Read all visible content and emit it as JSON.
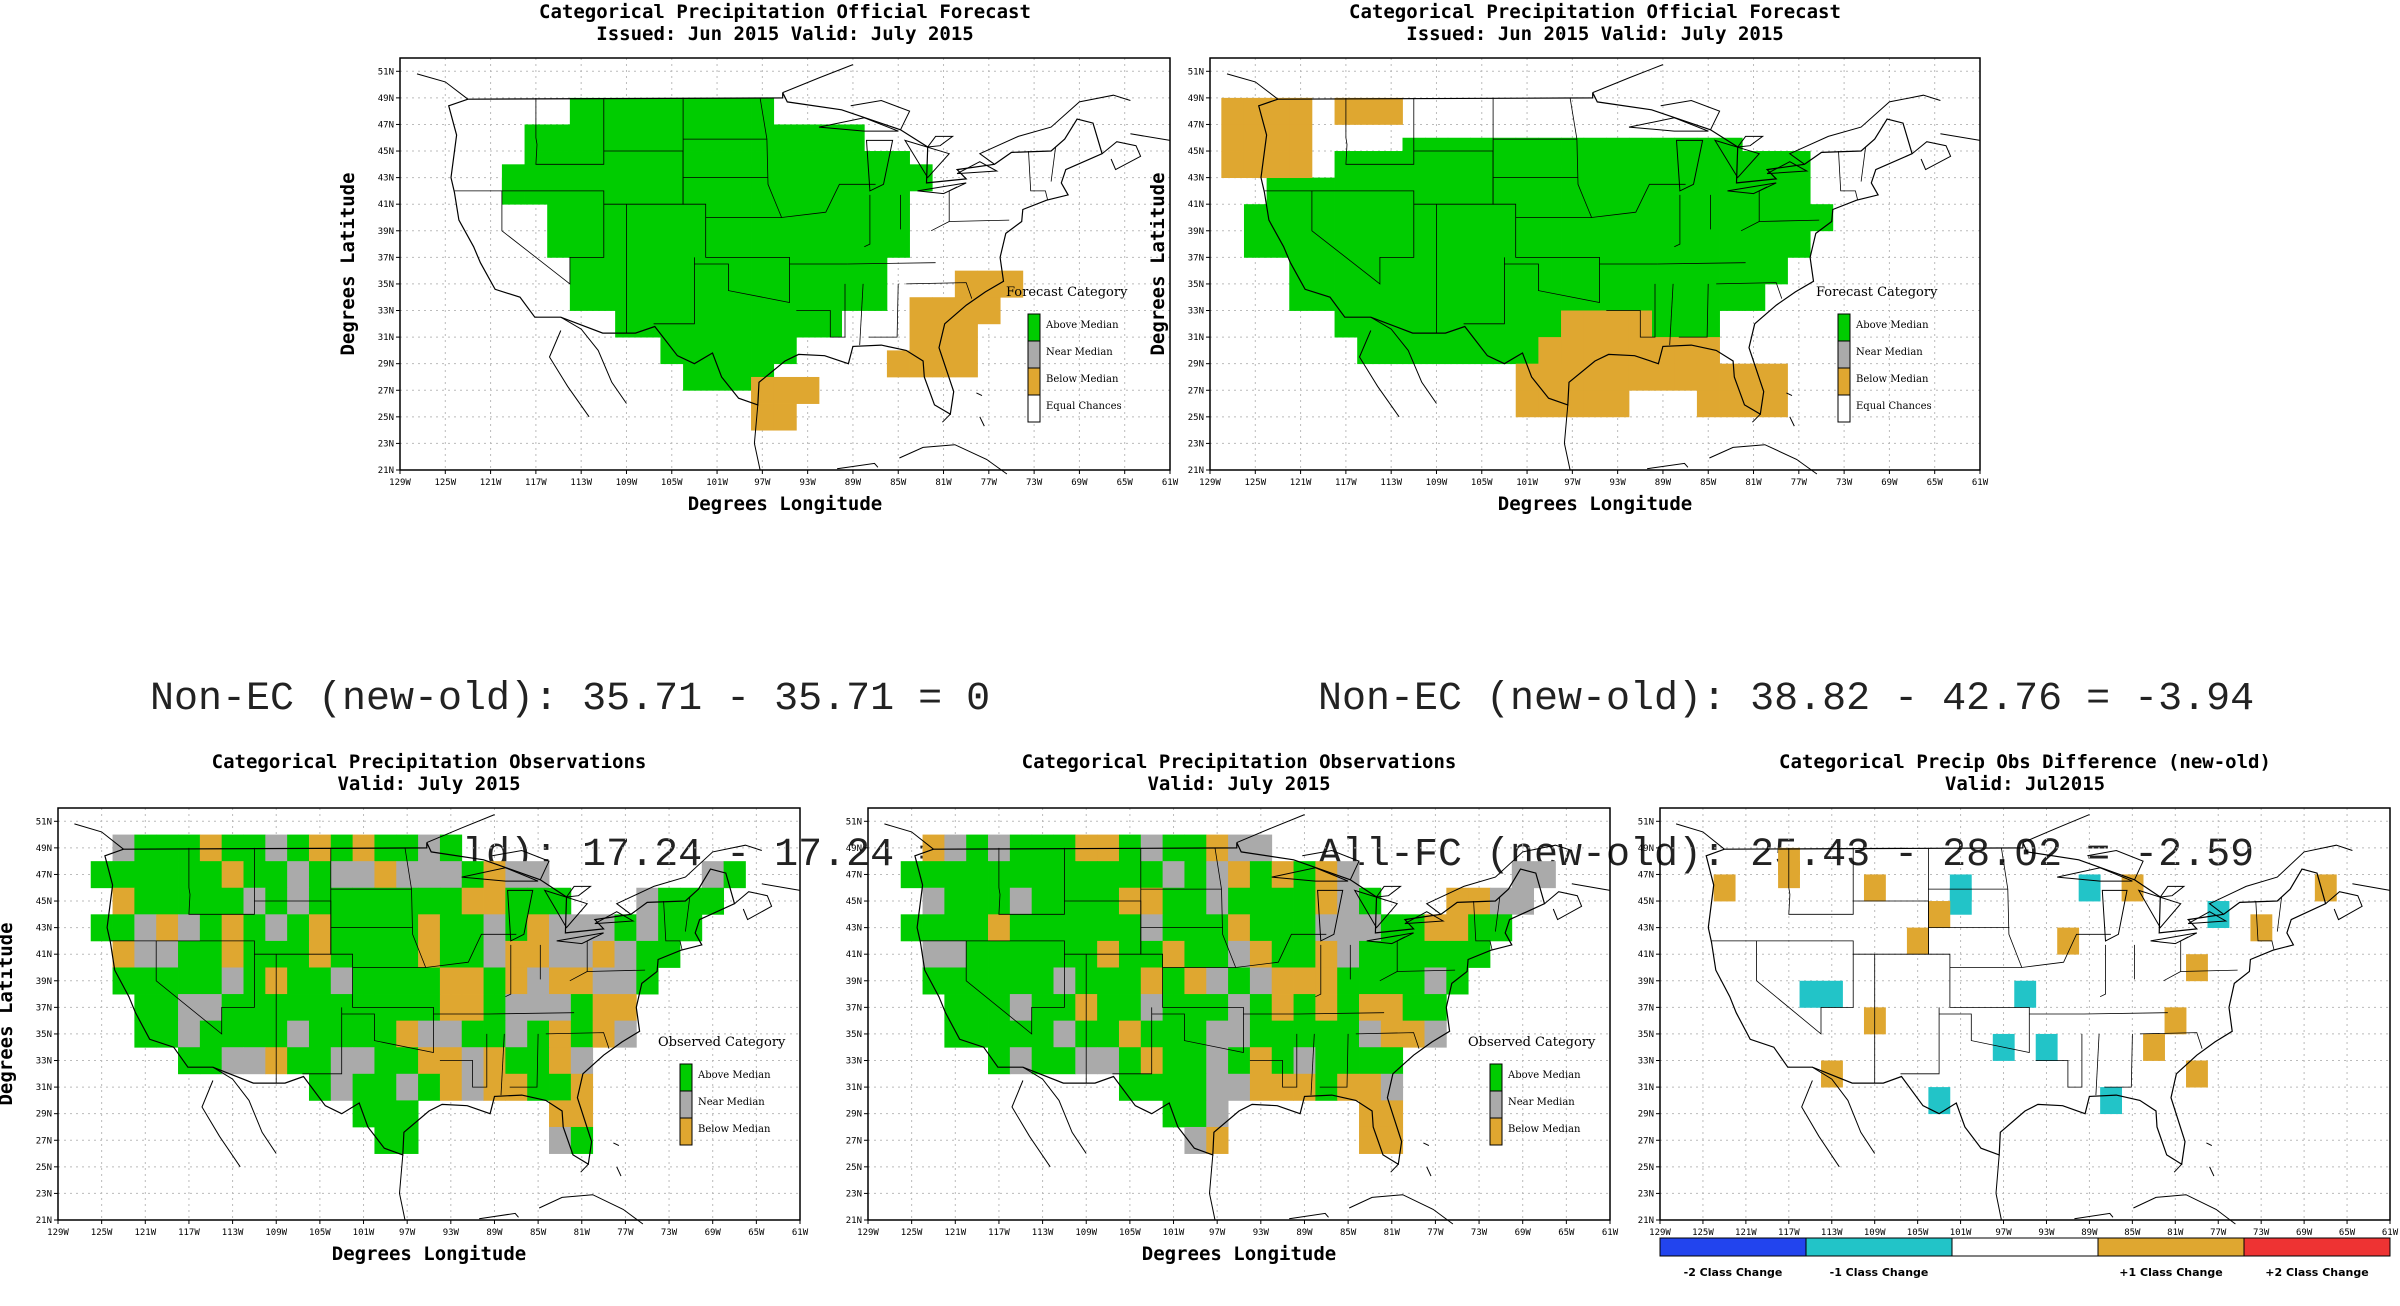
{
  "colors": {
    "above": "#00cc00",
    "near": "#aaaaaa",
    "below": "#dfa730",
    "equal": "#ffffff",
    "minus2": "#2244ee",
    "minus1": "#22c4c8",
    "plus1": "#dfa730",
    "plus2": "#ee3333",
    "zero": "#ffffff"
  },
  "axes": {
    "lat_ticks": [
      "51N",
      "49N",
      "47N",
      "45N",
      "43N",
      "41N",
      "39N",
      "37N",
      "35N",
      "33N",
      "31N",
      "29N",
      "27N",
      "25N",
      "23N",
      "21N"
    ],
    "lon_ticks": [
      "129W",
      "125W",
      "121W",
      "117W",
      "113W",
      "109W",
      "105W",
      "101W",
      "97W",
      "93W",
      "89W",
      "85W",
      "81W",
      "77W",
      "73W",
      "69W",
      "65W",
      "61W"
    ],
    "xlabel": "Degrees Longitude",
    "ylabel": "Degrees Latitude"
  },
  "stats": {
    "left": {
      "line1": "Non-EC (new-old): 35.71 - 35.71 = 0",
      "line2": "All-FC (new-old): 17.24 - 17.24 = 0"
    },
    "right": {
      "line1": "Non-EC (new-old): 38.82 - 42.76 = -3.94",
      "line2": "All-FC (new-old): 25.43 - 28.02 = -2.59"
    }
  },
  "chart_data": [
    {
      "id": "fc-old",
      "type": "heatmap",
      "title": "Categorical Precipitation Official Forecast",
      "subtitle": "Issued: Jun 2015 Valid: July 2015",
      "xlabel": "Degrees Longitude",
      "ylabel": "Degrees Latitude",
      "xlim": [
        -129,
        -61
      ],
      "ylim": [
        21,
        52
      ],
      "legend_title": "Forecast Category",
      "legend": [
        {
          "label": "Above Median",
          "color": "#00cc00"
        },
        {
          "label": "Near Median",
          "color": "#aaaaaa"
        },
        {
          "label": "Below Median",
          "color": "#dfa730"
        },
        {
          "label": "Equal Chances",
          "color": "#ffffff"
        }
      ],
      "cell_size_deg": 2,
      "cells": {
        "above": [
          [
            -113,
            48,
            -97,
            49
          ],
          [
            -117,
            46,
            -89,
            47
          ],
          [
            -117,
            44,
            -85,
            45
          ],
          [
            -119,
            43,
            -83,
            43
          ],
          [
            -119,
            42,
            -85,
            42
          ],
          [
            -115,
            40,
            -85,
            41
          ],
          [
            -115,
            38,
            -85,
            39
          ],
          [
            -113,
            36,
            -87,
            37
          ],
          [
            -113,
            34,
            -87,
            35
          ],
          [
            -109,
            32,
            -91,
            33
          ],
          [
            -105,
            30,
            -95,
            31
          ],
          [
            -103,
            28,
            -97,
            29
          ]
        ],
        "below": [
          [
            -79,
            35,
            -75,
            36
          ],
          [
            -83,
            33,
            -77,
            34
          ],
          [
            -83,
            31,
            -79,
            32
          ],
          [
            -85,
            29,
            -79,
            30
          ],
          [
            -97,
            27,
            -93,
            28
          ],
          [
            -97,
            25,
            -95,
            26
          ]
        ]
      }
    },
    {
      "id": "fc-new",
      "type": "heatmap",
      "title": "Categorical Precipitation Official Forecast",
      "subtitle": "Issued: Jun 2015 Valid: July 2015",
      "xlabel": "Degrees Longitude",
      "ylabel": "Degrees Latitude",
      "xlim": [
        -129,
        -61
      ],
      "ylim": [
        21,
        52
      ],
      "legend_title": "Forecast Category",
      "legend": [
        {
          "label": "Above Median",
          "color": "#00cc00"
        },
        {
          "label": "Near Median",
          "color": "#aaaaaa"
        },
        {
          "label": "Below Median",
          "color": "#dfa730"
        },
        {
          "label": "Equal Chances",
          "color": "#ffffff"
        }
      ],
      "cell_size_deg": 2,
      "cells": {
        "above": [
          [
            -111,
            45,
            -83,
            46
          ],
          [
            -117,
            44,
            -77,
            44
          ],
          [
            -123,
            42,
            -77,
            42
          ],
          [
            -125,
            40,
            -75,
            41
          ],
          [
            -125,
            38,
            -77,
            39
          ],
          [
            -121,
            36,
            -79,
            37
          ],
          [
            -121,
            34,
            -81,
            35
          ],
          [
            -117,
            32,
            -85,
            33
          ],
          [
            -115,
            30,
            -99,
            31
          ]
        ],
        "below": [
          [
            -127,
            48,
            -121,
            49
          ],
          [
            -117,
            48,
            -113,
            49
          ],
          [
            -127,
            46,
            -121,
            47
          ],
          [
            -127,
            44,
            -121,
            45
          ],
          [
            -97,
            32,
            -91,
            33
          ],
          [
            -99,
            30,
            -85,
            31
          ],
          [
            -101,
            28,
            -79,
            29
          ],
          [
            -101,
            26,
            -93,
            27
          ],
          [
            -85,
            26,
            -79,
            27
          ]
        ]
      }
    },
    {
      "id": "obs-old",
      "type": "heatmap",
      "title": "Categorical Precipitation Observations",
      "subtitle": "Valid: July 2015",
      "xlabel": "Degrees Longitude",
      "ylabel": "Degrees Latitude",
      "xlim": [
        -129,
        -61
      ],
      "ylim": [
        21,
        52
      ],
      "legend_title": "Observed Category",
      "legend": [
        {
          "label": "Above Median",
          "color": "#00cc00"
        },
        {
          "label": "Near Median",
          "color": "#aaaaaa"
        },
        {
          "label": "Below Median",
          "color": "#dfa730"
        }
      ]
    },
    {
      "id": "obs-new",
      "type": "heatmap",
      "title": "Categorical Precipitation Observations",
      "subtitle": "Valid: July 2015",
      "xlabel": "Degrees Longitude",
      "ylabel": "",
      "xlim": [
        -129,
        -61
      ],
      "ylim": [
        21,
        52
      ],
      "legend_title": "Observed Category",
      "legend": [
        {
          "label": "Above Median",
          "color": "#00cc00"
        },
        {
          "label": "Near Median",
          "color": "#aaaaaa"
        },
        {
          "label": "Below Median",
          "color": "#dfa730"
        }
      ]
    },
    {
      "id": "diff",
      "type": "heatmap",
      "title": "Categorical Precip Obs Difference (new-old)",
      "subtitle": "Valid: Jul2015",
      "xlabel": "",
      "ylabel": "",
      "xlim": [
        -129,
        -61
      ],
      "ylim": [
        21,
        52
      ],
      "colorbar": [
        {
          "label": "-2 Class Change",
          "color": "#2244ee"
        },
        {
          "label": "-1 Class Change",
          "color": "#22c4c8"
        },
        {
          "label": "",
          "color": "#ffffff"
        },
        {
          "label": "+1 Class Change",
          "color": "#dfa730"
        },
        {
          "label": "+2 Class Change",
          "color": "#ee3333"
        }
      ],
      "points": {
        "minus1": [
          [
            -115,
            38
          ],
          [
            -113,
            38
          ],
          [
            -101,
            46
          ],
          [
            -101,
            45
          ],
          [
            -89,
            46
          ],
          [
            -95,
            38
          ],
          [
            -97,
            34
          ],
          [
            -93,
            34
          ],
          [
            -77,
            44
          ],
          [
            -103,
            30
          ],
          [
            -87,
            30
          ]
        ],
        "plus1": [
          [
            -123,
            46
          ],
          [
            -117,
            48
          ],
          [
            -117,
            47
          ],
          [
            -109,
            46
          ],
          [
            -105,
            42
          ],
          [
            -103,
            44
          ],
          [
            -91,
            42
          ],
          [
            -109,
            36
          ],
          [
            -113,
            32
          ],
          [
            -85,
            46
          ],
          [
            -79,
            40
          ],
          [
            -81,
            36
          ],
          [
            -83,
            34
          ],
          [
            -79,
            32
          ],
          [
            -73,
            43
          ],
          [
            -67,
            46
          ]
        ]
      }
    }
  ]
}
